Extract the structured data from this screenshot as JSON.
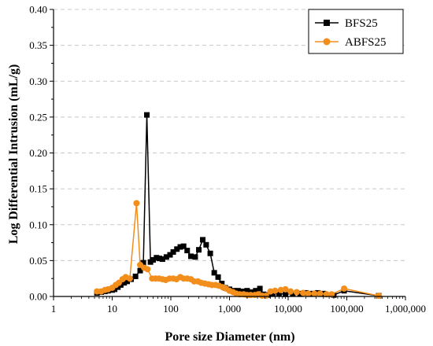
{
  "chart_data": {
    "type": "line",
    "title": "",
    "xlabel": "Pore size Diameter (nm)",
    "ylabel": "Log Differential Intrusion (mL/g)",
    "xscale": "log",
    "xlim": [
      1,
      1000000
    ],
    "ylim": [
      0,
      0.4
    ],
    "x_ticks": [
      1,
      10,
      100,
      1000,
      10000,
      100000,
      1000000
    ],
    "x_tick_labels": [
      "1",
      "10",
      "100",
      "1,000",
      "10,000",
      "100,000",
      "1,000,000"
    ],
    "y_ticks": [
      0,
      0.05,
      0.1,
      0.15,
      0.2,
      0.25,
      0.3,
      0.35,
      0.4
    ],
    "y_tick_labels": [
      "0.00",
      "0.05",
      "0.10",
      "0.15",
      "0.20",
      "0.25",
      "0.30",
      "0.35",
      "0.40"
    ],
    "grid": "horizontal dashed",
    "legend_position": "top-right",
    "series": [
      {
        "name": "BFS25",
        "color": "#000000",
        "marker": "square",
        "x": [
          5.5,
          6.5,
          7.5,
          8.5,
          10,
          11,
          12.5,
          14,
          16,
          18,
          21,
          25,
          30,
          34,
          39,
          45,
          50,
          57,
          64,
          72,
          84,
          97,
          110,
          127,
          145,
          165,
          190,
          220,
          260,
          300,
          350,
          400,
          470,
          550,
          640,
          740,
          850,
          1000,
          1200,
          1400,
          1700,
          2000,
          2400,
          2800,
          3300,
          3800,
          4500,
          5500,
          7000,
          9000,
          12000,
          16000,
          20000,
          25000,
          32000,
          40000,
          60000,
          90000,
          350000
        ],
        "y": [
          0.005,
          0.006,
          0.007,
          0.008,
          0.009,
          0.01,
          0.013,
          0.016,
          0.019,
          0.021,
          0.024,
          0.028,
          0.036,
          0.047,
          0.253,
          0.048,
          0.051,
          0.054,
          0.053,
          0.052,
          0.055,
          0.058,
          0.062,
          0.066,
          0.069,
          0.07,
          0.064,
          0.056,
          0.055,
          0.065,
          0.079,
          0.072,
          0.06,
          0.033,
          0.027,
          0.018,
          0.012,
          0.01,
          0.008,
          0.008,
          0.007,
          0.008,
          0.006,
          0.008,
          0.011,
          0.003,
          0.002,
          0.004,
          0.004,
          0.003,
          0.004,
          0.004,
          0.005,
          0.004,
          0.005,
          0.004,
          0.002,
          0.008,
          0.001
        ]
      },
      {
        "name": "ABFS25",
        "color": "#f28e1c",
        "marker": "circle",
        "x": [
          5.5,
          6.5,
          7.5,
          8.5,
          10,
          11.5,
          13,
          15,
          17,
          20,
          26,
          30,
          35,
          40,
          48,
          55,
          63,
          72,
          82,
          95,
          110,
          125,
          145,
          165,
          190,
          220,
          250,
          290,
          330,
          380,
          440,
          500,
          580,
          660,
          760,
          870,
          1000,
          1150,
          1300,
          1500,
          1750,
          2000,
          2300,
          2700,
          3100,
          3600,
          4200,
          5000,
          6000,
          7500,
          9000,
          11000,
          14000,
          18000,
          22000,
          28000,
          35000,
          45000,
          55000,
          90000,
          350000
        ],
        "y": [
          0.007,
          0.007,
          0.009,
          0.01,
          0.012,
          0.016,
          0.019,
          0.024,
          0.027,
          0.025,
          0.13,
          0.044,
          0.04,
          0.038,
          0.025,
          0.025,
          0.025,
          0.024,
          0.023,
          0.025,
          0.025,
          0.024,
          0.027,
          0.025,
          0.025,
          0.024,
          0.021,
          0.021,
          0.019,
          0.018,
          0.017,
          0.016,
          0.016,
          0.015,
          0.013,
          0.011,
          0.008,
          0.006,
          0.004,
          0.003,
          0.003,
          0.002,
          0.002,
          0.002,
          0.003,
          0.001,
          0.001,
          0.007,
          0.008,
          0.009,
          0.01,
          0.007,
          0.006,
          0.005,
          0.004,
          0.004,
          0.004,
          0.003,
          0.003,
          0.011,
          0.001
        ]
      }
    ]
  }
}
